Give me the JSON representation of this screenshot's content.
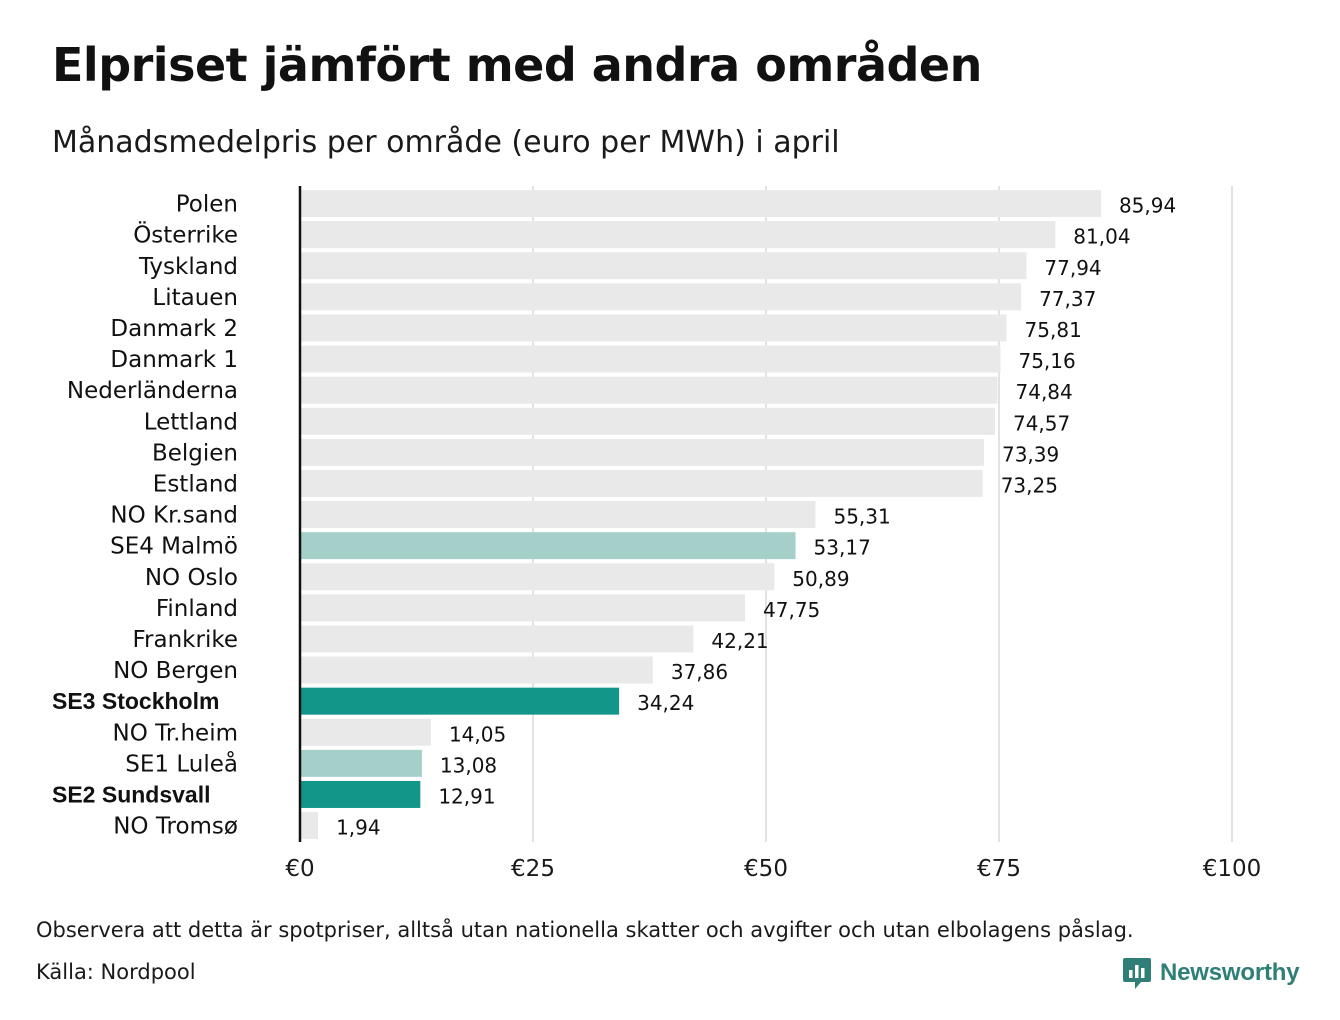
{
  "header": {
    "title": "Elpriset jämfört med andra områden",
    "subtitle": "Månadsmedelpris per område (euro per MWh) i april"
  },
  "footer": {
    "note": "Observera att detta är spotpriser, alltså utan nationella skatter och avgifter och utan elbolagens påslag.",
    "source": "Källa: Nordpool",
    "brand": "Newsworthy"
  },
  "colors": {
    "default_bar": "#e9e9e9",
    "highlight_strong": "#13968a",
    "highlight_light": "#a5d0ca",
    "brand": "#2f7f78"
  },
  "chart_data": {
    "type": "bar",
    "orientation": "horizontal",
    "categories": [
      "Polen",
      "Österrike",
      "Tyskland",
      "Litauen",
      "Danmark  2",
      "Danmark  1",
      "Nederländerna",
      "Lettland",
      "Belgien",
      "Estland",
      "NO Kr.sand",
      "SE4  Malmö",
      "NO Oslo",
      "Finland",
      "Frankrike",
      "NO Bergen",
      "SE3 Stockholm",
      "NO Tr.heim",
      "SE1  Luleå",
      "SE2 Sundsvall",
      "NO Tromsø"
    ],
    "values": [
      85.94,
      81.04,
      77.94,
      77.37,
      75.81,
      75.16,
      74.84,
      74.57,
      73.39,
      73.25,
      55.31,
      53.17,
      50.89,
      47.75,
      42.21,
      37.86,
      34.24,
      14.05,
      13.08,
      12.91,
      1.94
    ],
    "value_labels": [
      "85,94",
      "81,04",
      "77,94",
      "77,37",
      "75,81",
      "75,16",
      "74,84",
      "74,57",
      "73,39",
      "73,25",
      "55,31",
      "53,17",
      "50,89",
      "47,75",
      "42,21",
      "37,86",
      "34,24",
      "14,05",
      "13,08",
      "12,91",
      "1,94"
    ],
    "highlight": [
      "none",
      "none",
      "none",
      "none",
      "none",
      "none",
      "none",
      "none",
      "none",
      "none",
      "none",
      "light",
      "none",
      "none",
      "none",
      "none",
      "strong",
      "none",
      "light",
      "strong",
      "none"
    ],
    "bold_labels": [
      "SE3 Stockholm",
      "SE2 Sundsvall"
    ],
    "xlim": [
      0,
      100
    ],
    "xticks": [
      0,
      25,
      50,
      75,
      100
    ],
    "xtick_labels": [
      "€0",
      "€25",
      "€50",
      "€75",
      "€100"
    ],
    "grid": true,
    "xlabel": "",
    "ylabel": ""
  }
}
